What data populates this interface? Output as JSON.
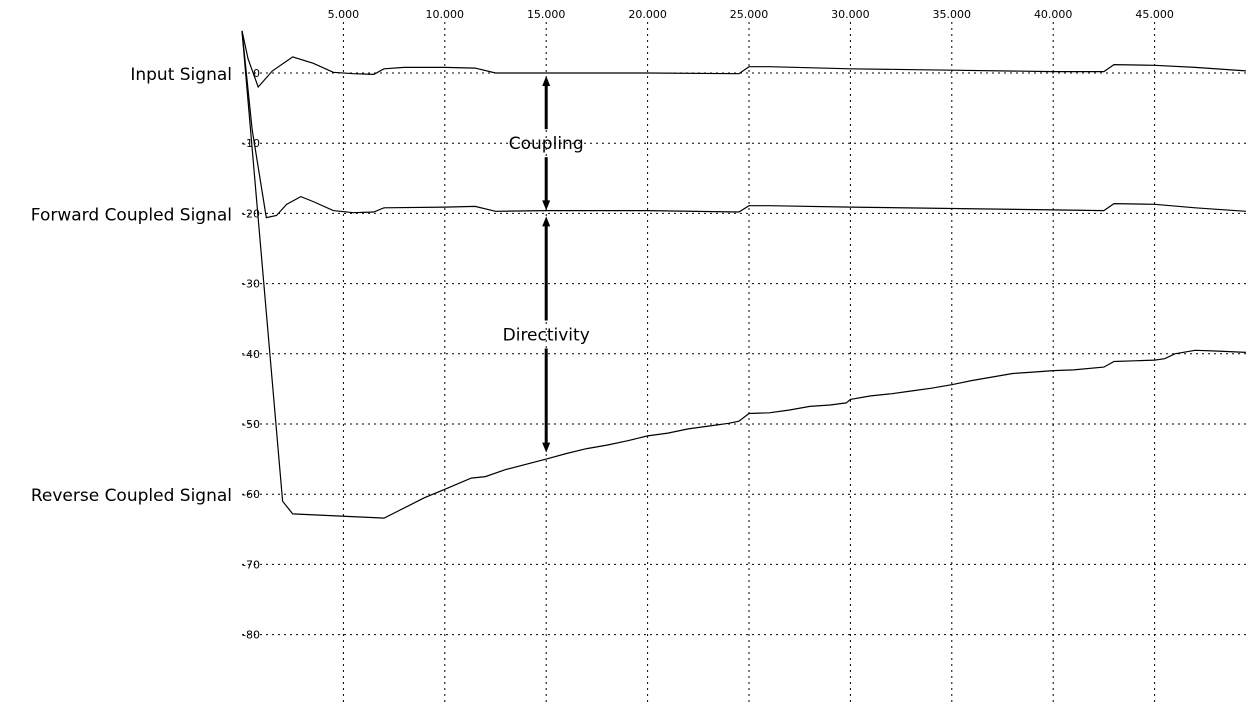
{
  "chart_data": {
    "type": "line",
    "grid": true,
    "x_ticks": [
      {
        "value": 5,
        "label": "5.000"
      },
      {
        "value": 10,
        "label": "10.000"
      },
      {
        "value": 15,
        "label": "15.000"
      },
      {
        "value": 20,
        "label": "20.000"
      },
      {
        "value": 25,
        "label": "25.000"
      },
      {
        "value": 30,
        "label": "30.000"
      },
      {
        "value": 35,
        "label": "35.000"
      },
      {
        "value": 40,
        "label": "40.000"
      },
      {
        "value": 45,
        "label": "45.000"
      }
    ],
    "y_ticks": [
      {
        "value": 0,
        "label": "0"
      },
      {
        "value": -10,
        "label": "-10"
      },
      {
        "value": -20,
        "label": "-20"
      },
      {
        "value": -30,
        "label": "-30"
      },
      {
        "value": -40,
        "label": "-40"
      },
      {
        "value": -50,
        "label": "-50"
      },
      {
        "value": -60,
        "label": "-60"
      },
      {
        "value": -70,
        "label": "-70"
      },
      {
        "value": -80,
        "label": "-80"
      }
    ],
    "xlim": [
      0,
      49.5
    ],
    "ylim": [
      -90,
      7
    ],
    "series": [
      {
        "name": "Input Signal",
        "label_y": 0,
        "x": [
          0,
          0.3,
          0.8,
          1.5,
          2.5,
          3.5,
          4.5,
          5.5,
          6.5,
          7,
          8,
          10,
          11.5,
          12.5,
          15,
          20,
          24.5,
          25,
          26,
          30,
          35,
          40,
          42.5,
          43,
          45,
          47,
          49.5
        ],
        "y": [
          6,
          2,
          -2,
          0.3,
          2.3,
          1.4,
          0.1,
          -0.1,
          -0.2,
          0.6,
          0.8,
          0.8,
          0.7,
          0,
          0,
          0,
          -0.1,
          0.9,
          0.9,
          0.6,
          0.4,
          0.2,
          0.2,
          1.2,
          1.1,
          0.8,
          0.3
        ]
      },
      {
        "name": "Forward Coupled Signal",
        "label_y": -20,
        "x": [
          0,
          0.5,
          1.2,
          1.7,
          2.2,
          2.9,
          3.5,
          4.5,
          5.5,
          6.5,
          7,
          10,
          11.5,
          12.5,
          15,
          20,
          24.5,
          25,
          26,
          30,
          35,
          40,
          42.5,
          43,
          45,
          47,
          49.5
        ],
        "y": [
          6,
          -8,
          -20.6,
          -20.3,
          -18.7,
          -17.6,
          -18.3,
          -19.6,
          -19.9,
          -19.8,
          -19.2,
          -19.1,
          -19,
          -19.7,
          -19.6,
          -19.6,
          -19.8,
          -18.9,
          -18.9,
          -19.1,
          -19.3,
          -19.5,
          -19.6,
          -18.6,
          -18.7,
          -19.2,
          -19.7
        ]
      },
      {
        "name": "Reverse Coupled Signal",
        "label_y": -60,
        "x": [
          0,
          2,
          2.5,
          7,
          7.7,
          9,
          10,
          11.3,
          12,
          13,
          15,
          16,
          17,
          18,
          19,
          20,
          21,
          22,
          23,
          24,
          24.5,
          25,
          26,
          27,
          28,
          29,
          29.8,
          30,
          31,
          32,
          33,
          34,
          35,
          36,
          37,
          38,
          39,
          40,
          41,
          42.5,
          43,
          44,
          45,
          45.5,
          46,
          47,
          48,
          49.5
        ],
        "y": [
          6,
          -61,
          -62.8,
          -63.4,
          -62.4,
          -60.5,
          -59.3,
          -57.7,
          -57.5,
          -56.5,
          -55,
          -54.2,
          -53.5,
          -53,
          -52.4,
          -51.7,
          -51.3,
          -50.7,
          -50.3,
          -49.9,
          -49.6,
          -48.5,
          -48.4,
          -48,
          -47.5,
          -47.3,
          -47,
          -46.5,
          -46,
          -45.7,
          -45.3,
          -44.9,
          -44.4,
          -43.8,
          -43.3,
          -42.8,
          -42.6,
          -42.4,
          -42.3,
          -41.9,
          -41.1,
          -41,
          -40.9,
          -40.7,
          -40,
          -39.5,
          -39.6,
          -39.8
        ]
      }
    ],
    "annotations": [
      {
        "label": "Coupling",
        "x": 15,
        "y_from": 0,
        "y_to": -20
      },
      {
        "label": "Directivity",
        "x": 15,
        "y_from": -20,
        "y_to": -54.5
      }
    ]
  }
}
